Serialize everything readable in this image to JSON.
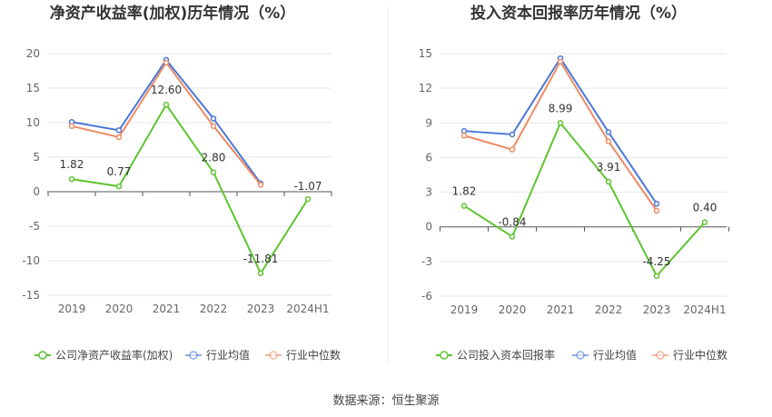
{
  "source": "数据来源：恒生聚源",
  "colors": {
    "company": "#5ec42f",
    "avg": "#4a78d8",
    "median": "#ee8a63",
    "axis": "#666666",
    "grid": "#e6e6e6"
  },
  "chart_data": [
    {
      "type": "line",
      "title": "净资产收益率(加权)历年情况（%）",
      "categories": [
        "2019",
        "2020",
        "2021",
        "2022",
        "2023",
        "2024H1"
      ],
      "ylim": [
        -15,
        20
      ],
      "yticks": [
        -15,
        -10,
        -5,
        0,
        5,
        10,
        15,
        20
      ],
      "grid": true,
      "legend_position": "bottom",
      "series": [
        {
          "name": "公司净资产收益率(加权)",
          "key": "company",
          "values": [
            1.82,
            0.77,
            12.6,
            2.8,
            -11.81,
            -1.07
          ],
          "labels": [
            "1.82",
            "0.77",
            "12.60",
            "2.80",
            "-11.81",
            "-1.07"
          ]
        },
        {
          "name": "行业均值",
          "key": "avg",
          "values": [
            10.1,
            8.9,
            19.1,
            10.6,
            1.2,
            null
          ]
        },
        {
          "name": "行业中位数",
          "key": "median",
          "values": [
            9.5,
            7.9,
            18.7,
            9.5,
            1.0,
            null
          ]
        }
      ]
    },
    {
      "type": "line",
      "title": "投入资本回报率历年情况（%）",
      "categories": [
        "2019",
        "2020",
        "2021",
        "2022",
        "2023",
        "2024H1"
      ],
      "ylim": [
        -6,
        15
      ],
      "yticks": [
        -6,
        -3,
        0,
        3,
        6,
        9,
        12,
        15
      ],
      "grid": true,
      "legend_position": "bottom",
      "series": [
        {
          "name": "公司投入资本回报率",
          "key": "company",
          "values": [
            1.82,
            -0.84,
            8.99,
            3.91,
            -4.25,
            0.4
          ],
          "labels": [
            "1.82",
            "-0.84",
            "8.99",
            "3.91",
            "-4.25",
            "0.40"
          ]
        },
        {
          "name": "行业均值",
          "key": "avg",
          "values": [
            8.3,
            8.0,
            14.6,
            8.2,
            2.0,
            null
          ]
        },
        {
          "name": "行业中位数",
          "key": "median",
          "values": [
            7.9,
            6.7,
            14.3,
            7.4,
            1.4,
            null
          ]
        }
      ]
    }
  ]
}
